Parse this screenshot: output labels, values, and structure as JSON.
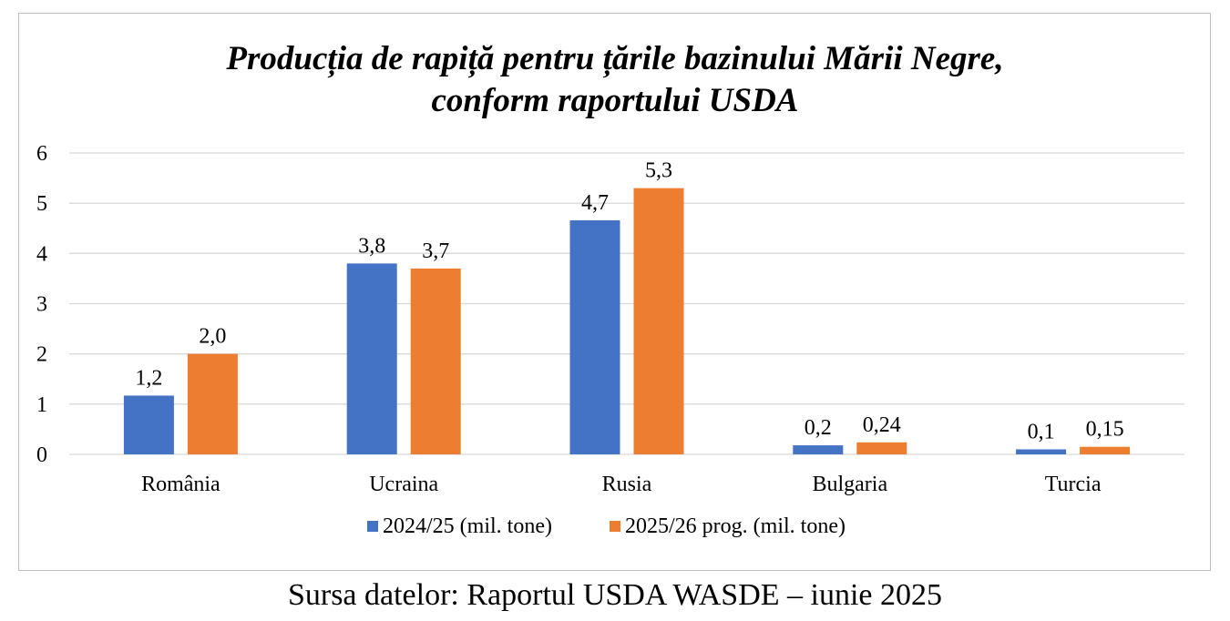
{
  "chart_data": {
    "type": "bar",
    "title_line1": "Producția de rapiță pentru țările bazinului Mării Negre,",
    "title_line2": "conform raportului USDA",
    "categories": [
      "România",
      "Ucraina",
      "Rusia",
      "Bulgaria",
      "Turcia"
    ],
    "series": [
      {
        "name": "2024/25 (mil. tone)",
        "color": "#4472C4",
        "values": [
          1.17,
          3.8,
          4.66,
          0.18,
          0.1
        ],
        "labels": [
          "1,2",
          "3,8",
          "4,7",
          "0,2",
          "0,1"
        ]
      },
      {
        "name": "2025/26 prog. (mil. tone)",
        "color": "#ED7D31",
        "values": [
          2.0,
          3.7,
          5.3,
          0.24,
          0.15
        ],
        "labels": [
          "2,0",
          "3,7",
          "5,3",
          "0,24",
          "0,15"
        ]
      }
    ],
    "ylim": [
      0,
      6
    ],
    "yticks": [
      "0",
      "1",
      "2",
      "3",
      "4",
      "5",
      "6"
    ],
    "grid": true,
    "legend_position": "bottom"
  },
  "footer": {
    "source": "Sursa datelor: Raportul USDA WASDE – iunie 2025"
  }
}
